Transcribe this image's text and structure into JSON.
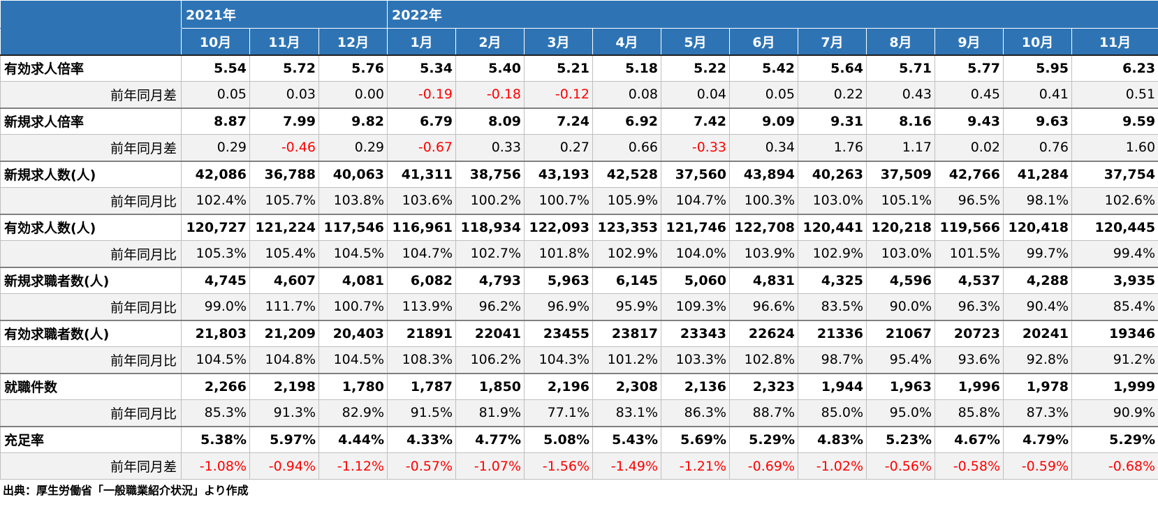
{
  "header": {
    "years": [
      "2021年",
      "2022年"
    ],
    "months": [
      "10月",
      "11月",
      "12月",
      "1月",
      "2月",
      "3月",
      "4月",
      "5月",
      "6月",
      "7月",
      "8月",
      "9月",
      "10月",
      "11月"
    ]
  },
  "rows": [
    {
      "label": "有効求人倍率",
      "values": [
        "5.54",
        "5.72",
        "5.76",
        "5.34",
        "5.40",
        "5.21",
        "5.18",
        "5.22",
        "5.42",
        "5.64",
        "5.71",
        "5.77",
        "5.95",
        "6.23"
      ],
      "sub_label": "前年同月差",
      "sub_values": [
        "0.05",
        "0.03",
        "0.00",
        "-0.19",
        "-0.18",
        "-0.12",
        "0.08",
        "0.04",
        "0.05",
        "0.22",
        "0.43",
        "0.45",
        "0.41",
        "0.51"
      ]
    },
    {
      "label": "新規求人倍率",
      "values": [
        "8.87",
        "7.99",
        "9.82",
        "6.79",
        "8.09",
        "7.24",
        "6.92",
        "7.42",
        "9.09",
        "9.31",
        "8.16",
        "9.43",
        "9.63",
        "9.59"
      ],
      "sub_label": "前年同月差",
      "sub_values": [
        "0.29",
        "-0.46",
        "0.29",
        "-0.67",
        "0.33",
        "0.27",
        "0.66",
        "-0.33",
        "0.34",
        "1.76",
        "1.17",
        "0.02",
        "0.76",
        "1.60"
      ]
    },
    {
      "label": "新規求人数(人)",
      "values": [
        "42,086",
        "36,788",
        "40,063",
        "41,311",
        "38,756",
        "43,193",
        "42,528",
        "37,560",
        "43,894",
        "40,263",
        "37,509",
        "42,766",
        "41,284",
        "37,754"
      ],
      "sub_label": "前年同月比",
      "sub_values": [
        "102.4%",
        "105.7%",
        "103.8%",
        "103.6%",
        "100.2%",
        "100.7%",
        "105.9%",
        "104.7%",
        "100.3%",
        "103.0%",
        "105.1%",
        "96.5%",
        "98.1%",
        "102.6%"
      ]
    },
    {
      "label": "有効求人数(人)",
      "values": [
        "120,727",
        "121,224",
        "117,546",
        "116,961",
        "118,934",
        "122,093",
        "123,353",
        "121,746",
        "122,708",
        "120,441",
        "120,218",
        "119,566",
        "120,418",
        "120,445"
      ],
      "sub_label": "前年同月比",
      "sub_values": [
        "105.3%",
        "105.4%",
        "104.5%",
        "104.7%",
        "102.7%",
        "101.8%",
        "102.9%",
        "104.0%",
        "103.9%",
        "102.9%",
        "103.0%",
        "101.5%",
        "99.7%",
        "99.4%"
      ]
    },
    {
      "label": "新規求職者数(人)",
      "values": [
        "4,745",
        "4,607",
        "4,081",
        "6,082",
        "4,793",
        "5,963",
        "6,145",
        "5,060",
        "4,831",
        "4,325",
        "4,596",
        "4,537",
        "4,288",
        "3,935"
      ],
      "sub_label": "前年同月比",
      "sub_values": [
        "99.0%",
        "111.7%",
        "100.7%",
        "113.9%",
        "96.2%",
        "96.9%",
        "95.9%",
        "109.3%",
        "96.6%",
        "83.5%",
        "90.0%",
        "96.3%",
        "90.4%",
        "85.4%"
      ]
    },
    {
      "label": "有効求職者数(人)",
      "values": [
        "21,803",
        "21,209",
        "20,403",
        "21891",
        "22041",
        "23455",
        "23817",
        "23343",
        "22624",
        "21336",
        "21067",
        "20723",
        "20241",
        "19346"
      ],
      "sub_label": "前年同月比",
      "sub_values": [
        "104.5%",
        "104.8%",
        "104.5%",
        "108.3%",
        "106.2%",
        "104.3%",
        "101.2%",
        "103.3%",
        "102.8%",
        "98.7%",
        "95.4%",
        "93.6%",
        "92.8%",
        "91.2%"
      ]
    },
    {
      "label": "就職件数",
      "values": [
        "2,266",
        "2,198",
        "1,780",
        "1,787",
        "1,850",
        "2,196",
        "2,308",
        "2,136",
        "2,323",
        "1,944",
        "1,963",
        "1,996",
        "1,978",
        "1,999"
      ],
      "sub_label": "前年同月比",
      "sub_values": [
        "85.3%",
        "91.3%",
        "82.9%",
        "91.5%",
        "81.9%",
        "77.1%",
        "83.1%",
        "86.3%",
        "88.7%",
        "85.0%",
        "95.0%",
        "85.8%",
        "87.3%",
        "90.9%"
      ]
    },
    {
      "label": "充足率",
      "values": [
        "5.38%",
        "5.97%",
        "4.44%",
        "4.33%",
        "4.77%",
        "5.08%",
        "5.43%",
        "5.69%",
        "5.29%",
        "4.83%",
        "5.23%",
        "4.67%",
        "4.79%",
        "5.29%"
      ],
      "sub_label": "前年同月差",
      "sub_values": [
        "-1.08%",
        "-0.94%",
        "-1.12%",
        "-0.57%",
        "-1.07%",
        "-1.56%",
        "-1.49%",
        "-1.21%",
        "-0.69%",
        "-1.02%",
        "-0.56%",
        "-0.58%",
        "-0.59%",
        "-0.68%"
      ]
    }
  ],
  "colors": {
    "header_bg": "#2e74b5",
    "header_text": "#ffffff",
    "negative": "#ff0000",
    "sub_row_bg": "#f2f2f2"
  },
  "source": "出典：厚生労働省「一般職業紹介状況」より作成"
}
